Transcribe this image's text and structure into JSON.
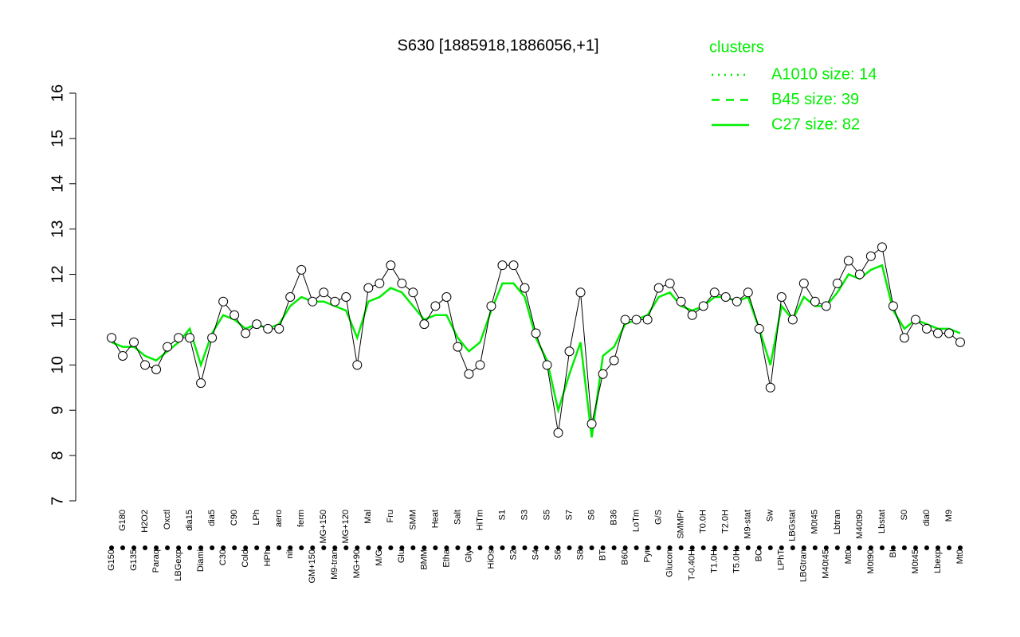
{
  "chart_data": {
    "type": "line",
    "title": "S630 [1885918,1886056,+1]",
    "legend_title": "clusters",
    "categories": [
      "G150",
      "G180",
      "G135",
      "H2O2",
      "Paraq",
      "Oxctl",
      "LBGexp",
      "dia15",
      "Diami",
      "dia5",
      "C30",
      "C90",
      "Cold",
      "LPh",
      "HPh",
      "aero",
      "nit",
      "ferm",
      "GM+150",
      "MG+150",
      "M9-tran",
      "MG+120",
      "MG+90",
      "Mal",
      "M/G",
      "Fru",
      "Glu",
      "SMM",
      "BMM",
      "Heat",
      "Etha",
      "Salt",
      "Gly",
      "HiTm",
      "HiOs",
      "S1",
      "S2",
      "S3",
      "S4",
      "S5",
      "S6",
      "S7",
      "S8",
      "S6",
      "BT",
      "B36",
      "B60",
      "LoTm",
      "Pyr",
      "G/S",
      "Glucon",
      "SMMPr",
      "T-0.40H",
      "T0.0H",
      "T1.0H",
      "T2.0H",
      "T5.0H",
      "M9-stat",
      "BC",
      "Sw",
      "LPhT",
      "LBGstat",
      "LBGtran",
      "M0t45",
      "M40t45",
      "Lbtran",
      "Mt0",
      "M40t90",
      "M0t90",
      "Lbstat",
      "BI",
      "S0",
      "M0t45",
      "dia0",
      "Lbexp",
      "M9",
      "Mt0"
    ],
    "values": [
      10.6,
      10.2,
      10.5,
      10.0,
      9.9,
      10.4,
      10.6,
      10.6,
      9.6,
      10.6,
      11.4,
      11.1,
      10.7,
      10.9,
      10.8,
      10.8,
      11.5,
      12.1,
      11.4,
      11.6,
      11.4,
      11.5,
      10.0,
      11.7,
      11.8,
      12.2,
      11.8,
      11.6,
      10.9,
      11.3,
      11.5,
      10.4,
      9.8,
      10.0,
      11.3,
      12.2,
      12.2,
      11.7,
      10.7,
      10.0,
      8.5,
      10.3,
      11.6,
      8.7,
      9.8,
      10.1,
      11.0,
      11.0,
      11.0,
      11.7,
      11.8,
      11.4,
      11.1,
      11.3,
      11.6,
      11.5,
      11.4,
      11.6,
      10.8,
      9.5,
      11.5,
      11.0,
      11.8,
      11.4,
      11.3,
      11.8,
      12.3,
      12.0,
      12.4,
      12.6,
      11.3,
      10.6,
      11.0,
      10.8,
      10.7,
      10.7,
      10.5
    ],
    "series": [
      {
        "name": "A1010 size: 14",
        "color": "#00ee00",
        "dash": "dotted"
      },
      {
        "name": "B45 size: 39",
        "color": "#00ee00",
        "dash": "dashed"
      },
      {
        "name": "C27 size: 82",
        "color": "#00ee00",
        "dash": "solid",
        "values": [
          10.5,
          10.4,
          10.4,
          10.2,
          10.1,
          10.3,
          10.5,
          10.8,
          10.0,
          10.7,
          11.1,
          11.0,
          10.8,
          10.9,
          10.8,
          10.9,
          11.3,
          11.5,
          11.4,
          11.4,
          11.3,
          11.2,
          10.6,
          11.4,
          11.5,
          11.7,
          11.6,
          11.3,
          11.0,
          11.1,
          11.1,
          10.6,
          10.3,
          10.5,
          11.2,
          11.8,
          11.8,
          11.5,
          10.6,
          10.1,
          9.0,
          9.8,
          10.5,
          8.4,
          10.2,
          10.4,
          10.9,
          11.0,
          11.1,
          11.5,
          11.6,
          11.3,
          11.2,
          11.3,
          11.5,
          11.5,
          11.4,
          11.5,
          10.8,
          10.0,
          11.3,
          11.0,
          11.5,
          11.3,
          11.3,
          11.6,
          12.0,
          11.9,
          12.1,
          12.2,
          11.2,
          10.8,
          11.0,
          10.9,
          10.8,
          10.8,
          10.7
        ]
      }
    ],
    "ylim": [
      7,
      16
    ],
    "yticks": [
      7,
      8,
      9,
      10,
      11,
      12,
      13,
      14,
      15,
      16
    ]
  }
}
